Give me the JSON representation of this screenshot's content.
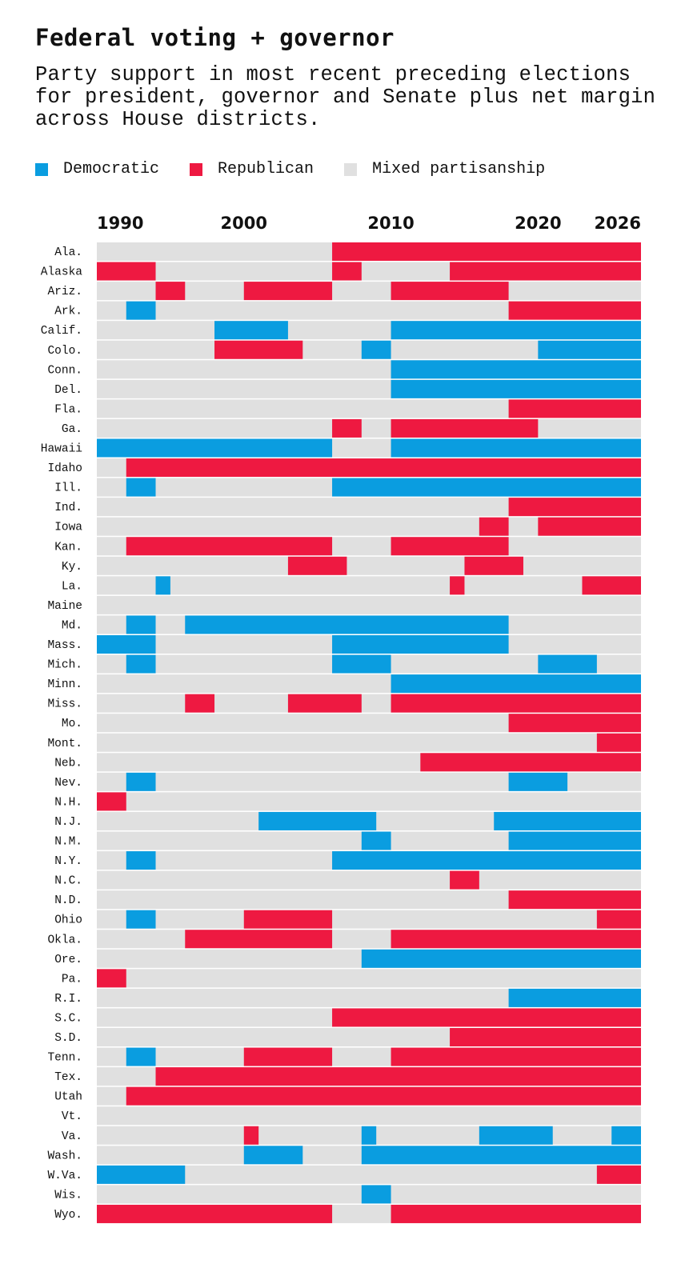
{
  "title": "Federal voting + governor",
  "subtitle": "Party support in most recent preceding elections for president, governor and Senate plus net margin across House districts.",
  "colors": {
    "D": "#0a9de0",
    "R": "#ee1941",
    "M": "#e0e0e0"
  },
  "legend": [
    {
      "key": "D",
      "label": "Democratic"
    },
    {
      "key": "R",
      "label": "Republican"
    },
    {
      "key": "M",
      "label": "Mixed partisanship"
    }
  ],
  "chart_data": {
    "type": "heatmap",
    "xlim": [
      1990,
      2027
    ],
    "ticks": [
      1990,
      2000,
      2010,
      2020,
      2026
    ],
    "default_category": "M",
    "rows": [
      {
        "state": "Ala.",
        "segments": [
          [
            "R",
            2006,
            2027
          ]
        ]
      },
      {
        "state": "Alaska",
        "segments": [
          [
            "R",
            1990,
            1994
          ],
          [
            "R",
            2006,
            2008
          ],
          [
            "R",
            2014,
            2027
          ]
        ]
      },
      {
        "state": "Ariz.",
        "segments": [
          [
            "R",
            1994,
            1996
          ],
          [
            "R",
            2000,
            2006
          ],
          [
            "R",
            2010,
            2018
          ]
        ]
      },
      {
        "state": "Ark.",
        "segments": [
          [
            "D",
            1992,
            1994
          ],
          [
            "R",
            2018,
            2027
          ]
        ]
      },
      {
        "state": "Calif.",
        "segments": [
          [
            "D",
            1998,
            2003
          ],
          [
            "D",
            2010,
            2027
          ]
        ]
      },
      {
        "state": "Colo.",
        "segments": [
          [
            "R",
            1998,
            2004
          ],
          [
            "D",
            2008,
            2010
          ],
          [
            "D",
            2020,
            2027
          ]
        ]
      },
      {
        "state": "Conn.",
        "segments": [
          [
            "D",
            2010,
            2027
          ]
        ]
      },
      {
        "state": "Del.",
        "segments": [
          [
            "D",
            2010,
            2027
          ]
        ]
      },
      {
        "state": "Fla.",
        "segments": [
          [
            "R",
            2018,
            2027
          ]
        ]
      },
      {
        "state": "Ga.",
        "segments": [
          [
            "R",
            2006,
            2008
          ],
          [
            "R",
            2010,
            2020
          ]
        ]
      },
      {
        "state": "Hawaii",
        "segments": [
          [
            "D",
            1990,
            2006
          ],
          [
            "D",
            2010,
            2027
          ]
        ]
      },
      {
        "state": "Idaho",
        "segments": [
          [
            "R",
            1992,
            2027
          ]
        ]
      },
      {
        "state": "Ill.",
        "segments": [
          [
            "D",
            1992,
            1994
          ],
          [
            "D",
            2006,
            2027
          ]
        ]
      },
      {
        "state": "Ind.",
        "segments": [
          [
            "R",
            2018,
            2027
          ]
        ]
      },
      {
        "state": "Iowa",
        "segments": [
          [
            "R",
            2016,
            2018
          ],
          [
            "R",
            2020,
            2027
          ]
        ]
      },
      {
        "state": "Kan.",
        "segments": [
          [
            "R",
            1992,
            2006
          ],
          [
            "R",
            2010,
            2018
          ]
        ]
      },
      {
        "state": "Ky.",
        "segments": [
          [
            "R",
            2003,
            2007
          ],
          [
            "R",
            2015,
            2019
          ]
        ]
      },
      {
        "state": "La.",
        "segments": [
          [
            "D",
            1994,
            1995
          ],
          [
            "R",
            2014,
            2015
          ],
          [
            "R",
            2023,
            2027
          ]
        ]
      },
      {
        "state": "Maine",
        "segments": []
      },
      {
        "state": "Md.",
        "segments": [
          [
            "D",
            1992,
            1994
          ],
          [
            "D",
            1996,
            2018
          ]
        ]
      },
      {
        "state": "Mass.",
        "segments": [
          [
            "D",
            1990,
            1994
          ],
          [
            "D",
            2006,
            2018
          ]
        ]
      },
      {
        "state": "Mich.",
        "segments": [
          [
            "D",
            1992,
            1994
          ],
          [
            "D",
            2006,
            2010
          ],
          [
            "D",
            2020,
            2024
          ]
        ]
      },
      {
        "state": "Minn.",
        "segments": [
          [
            "D",
            2010,
            2027
          ]
        ]
      },
      {
        "state": "Miss.",
        "segments": [
          [
            "R",
            1996,
            1998
          ],
          [
            "R",
            2003,
            2008
          ],
          [
            "R",
            2010,
            2027
          ]
        ]
      },
      {
        "state": "Mo.",
        "segments": [
          [
            "R",
            2018,
            2027
          ]
        ]
      },
      {
        "state": "Mont.",
        "segments": [
          [
            "R",
            2024,
            2027
          ]
        ]
      },
      {
        "state": "Neb.",
        "segments": [
          [
            "R",
            2012,
            2027
          ]
        ]
      },
      {
        "state": "Nev.",
        "segments": [
          [
            "D",
            1992,
            1994
          ],
          [
            "D",
            2018,
            2022
          ]
        ]
      },
      {
        "state": "N.H.",
        "segments": [
          [
            "R",
            1990,
            1992
          ]
        ]
      },
      {
        "state": "N.J.",
        "segments": [
          [
            "D",
            2001,
            2009
          ],
          [
            "D",
            2017,
            2027
          ]
        ]
      },
      {
        "state": "N.M.",
        "segments": [
          [
            "D",
            2008,
            2010
          ],
          [
            "D",
            2018,
            2027
          ]
        ]
      },
      {
        "state": "N.Y.",
        "segments": [
          [
            "D",
            1992,
            1994
          ],
          [
            "D",
            2006,
            2027
          ]
        ]
      },
      {
        "state": "N.C.",
        "segments": [
          [
            "R",
            2014,
            2016
          ]
        ]
      },
      {
        "state": "N.D.",
        "segments": [
          [
            "R",
            2018,
            2027
          ]
        ]
      },
      {
        "state": "Ohio",
        "segments": [
          [
            "D",
            1992,
            1994
          ],
          [
            "R",
            2000,
            2006
          ],
          [
            "R",
            2024,
            2027
          ]
        ]
      },
      {
        "state": "Okla.",
        "segments": [
          [
            "R",
            1996,
            2006
          ],
          [
            "R",
            2010,
            2027
          ]
        ]
      },
      {
        "state": "Ore.",
        "segments": [
          [
            "D",
            2008,
            2027
          ]
        ]
      },
      {
        "state": "Pa.",
        "segments": [
          [
            "R",
            1990,
            1992
          ]
        ]
      },
      {
        "state": "R.I.",
        "segments": [
          [
            "D",
            2018,
            2027
          ]
        ]
      },
      {
        "state": "S.C.",
        "segments": [
          [
            "R",
            2006,
            2027
          ]
        ]
      },
      {
        "state": "S.D.",
        "segments": [
          [
            "R",
            2014,
            2027
          ]
        ]
      },
      {
        "state": "Tenn.",
        "segments": [
          [
            "D",
            1992,
            1994
          ],
          [
            "R",
            2000,
            2006
          ],
          [
            "R",
            2010,
            2027
          ]
        ]
      },
      {
        "state": "Tex.",
        "segments": [
          [
            "R",
            1994,
            2027
          ]
        ]
      },
      {
        "state": "Utah",
        "segments": [
          [
            "R",
            1992,
            2027
          ]
        ]
      },
      {
        "state": "Vt.",
        "segments": []
      },
      {
        "state": "Va.",
        "segments": [
          [
            "R",
            2000,
            2001
          ],
          [
            "D",
            2008,
            2009
          ],
          [
            "D",
            2016,
            2021
          ],
          [
            "D",
            2025,
            2027
          ]
        ]
      },
      {
        "state": "Wash.",
        "segments": [
          [
            "D",
            2000,
            2004
          ],
          [
            "D",
            2008,
            2027
          ]
        ]
      },
      {
        "state": "W.Va.",
        "segments": [
          [
            "D",
            1990,
            1996
          ],
          [
            "R",
            2024,
            2027
          ]
        ]
      },
      {
        "state": "Wis.",
        "segments": [
          [
            "D",
            2008,
            2010
          ]
        ]
      },
      {
        "state": "Wyo.",
        "segments": [
          [
            "R",
            1990,
            2006
          ],
          [
            "R",
            2010,
            2027
          ]
        ]
      }
    ]
  }
}
